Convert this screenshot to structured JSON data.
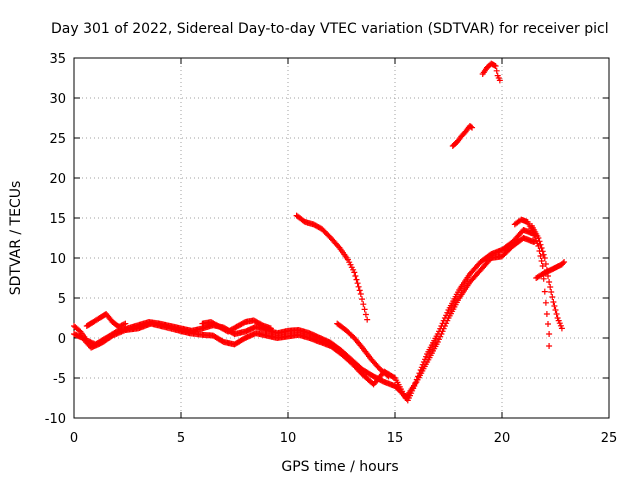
{
  "chart_data": {
    "type": "scatter",
    "title": "Day 301 of 2022, Sidereal Day-to-day VTEC variation (SDTVAR) for receiver picl",
    "xlabel": "GPS time / hours",
    "ylabel": "SDTVAR / TECUs",
    "xlim": [
      0,
      25
    ],
    "ylim": [
      -10,
      35
    ],
    "xticks": [
      0,
      5,
      10,
      15,
      20,
      25
    ],
    "yticks": [
      -10,
      -5,
      0,
      5,
      10,
      15,
      20,
      25,
      30,
      35
    ],
    "grid": true,
    "marker": "+",
    "color": "#ff0000",
    "series": [
      {
        "name": "trace-1",
        "points": [
          [
            0,
            1.5
          ],
          [
            0.3,
            0.8
          ],
          [
            0.6,
            -0.3
          ],
          [
            1,
            -0.8
          ],
          [
            1.5,
            0
          ],
          [
            2,
            0.8
          ],
          [
            2.5,
            1.2
          ],
          [
            3,
            1.6
          ],
          [
            3.5,
            2
          ],
          [
            4,
            1.8
          ],
          [
            4.5,
            1.5
          ],
          [
            5,
            1.2
          ],
          [
            5.5,
            0.9
          ],
          [
            6,
            1.2
          ],
          [
            6.5,
            1.6
          ],
          [
            7,
            1.3
          ],
          [
            7.5,
            0.5
          ],
          [
            8,
            0.8
          ],
          [
            8.5,
            1.4
          ],
          [
            9,
            1
          ],
          [
            9.5,
            0.6
          ],
          [
            10,
            0.9
          ],
          [
            10.5,
            1
          ],
          [
            11,
            0.6
          ],
          [
            11.5,
            0
          ],
          [
            12,
            -0.6
          ],
          [
            12.5,
            -1.6
          ],
          [
            13,
            -2.8
          ],
          [
            13.5,
            -4
          ],
          [
            14,
            -4.8
          ],
          [
            14.5,
            -5.5
          ],
          [
            15,
            -6
          ],
          [
            15.3,
            -6.8
          ],
          [
            15.6,
            -7.8
          ],
          [
            15.9,
            -6
          ],
          [
            16.2,
            -4
          ],
          [
            16.5,
            -2
          ],
          [
            17,
            0.5
          ],
          [
            17.5,
            3.5
          ],
          [
            18,
            6
          ],
          [
            18.5,
            8
          ],
          [
            19,
            9.5
          ],
          [
            19.5,
            10.5
          ],
          [
            20,
            11
          ],
          [
            20.5,
            12
          ],
          [
            21,
            13.5
          ],
          [
            21.5,
            13
          ]
        ]
      },
      {
        "name": "trace-2",
        "points": [
          [
            0,
            0.5
          ],
          [
            0.4,
            0
          ],
          [
            0.8,
            -1.2
          ],
          [
            1.3,
            -0.6
          ],
          [
            1.8,
            0.3
          ],
          [
            2.4,
            1
          ],
          [
            3,
            1.2
          ],
          [
            3.6,
            1.8
          ],
          [
            4.2,
            1.4
          ],
          [
            4.8,
            1
          ],
          [
            5.4,
            0.6
          ],
          [
            6,
            0.4
          ],
          [
            6.5,
            0.3
          ],
          [
            7,
            -0.5
          ],
          [
            7.5,
            -0.8
          ],
          [
            8,
            0
          ],
          [
            8.5,
            0.6
          ],
          [
            9,
            0.3
          ],
          [
            9.5,
            0
          ],
          [
            10,
            0.2
          ],
          [
            10.5,
            0.4
          ],
          [
            11,
            0
          ],
          [
            11.5,
            -0.5
          ],
          [
            12,
            -1
          ],
          [
            12.5,
            -2
          ],
          [
            13,
            -3.2
          ],
          [
            13.5,
            -4.6
          ],
          [
            14,
            -5.8
          ],
          [
            14.5,
            -4.2
          ],
          [
            15,
            -5
          ],
          [
            15.5,
            -7.5
          ],
          [
            16,
            -5.5
          ],
          [
            16.5,
            -3
          ],
          [
            17,
            -0.5
          ],
          [
            17.5,
            2.5
          ],
          [
            18,
            5
          ],
          [
            18.5,
            7
          ],
          [
            19,
            8.5
          ],
          [
            19.5,
            10
          ],
          [
            20,
            10.2
          ],
          [
            20.5,
            11.5
          ],
          [
            21,
            12.5
          ],
          [
            21.5,
            12
          ]
        ]
      },
      {
        "name": "trace-3",
        "points": [
          [
            0.6,
            1.5
          ],
          [
            0.9,
            2
          ],
          [
            1.2,
            2.5
          ],
          [
            1.5,
            3
          ],
          [
            1.8,
            2
          ],
          [
            2.1,
            1.4
          ],
          [
            2.4,
            1.8
          ]
        ]
      },
      {
        "name": "trace-4",
        "points": [
          [
            6,
            1.8
          ],
          [
            6.4,
            2
          ],
          [
            6.8,
            1.4
          ],
          [
            7.2,
            0.8
          ],
          [
            7.6,
            1.4
          ],
          [
            8,
            2
          ],
          [
            8.4,
            2.2
          ],
          [
            8.8,
            1.6
          ],
          [
            9.2,
            1.2
          ]
        ]
      },
      {
        "name": "trace-5",
        "points": [
          [
            10.4,
            15.3
          ],
          [
            10.8,
            14.5
          ],
          [
            11.2,
            14.2
          ],
          [
            11.6,
            13.6
          ],
          [
            12,
            12.5
          ],
          [
            12.4,
            11.3
          ],
          [
            12.8,
            9.8
          ],
          [
            13.1,
            8.2
          ],
          [
            13.4,
            5.5
          ],
          [
            13.7,
            2.3
          ]
        ]
      },
      {
        "name": "trace-6",
        "points": [
          [
            12.3,
            1.8
          ],
          [
            12.7,
            1
          ],
          [
            13.1,
            0
          ],
          [
            13.5,
            -1.3
          ],
          [
            13.9,
            -2.7
          ],
          [
            14.3,
            -3.9
          ],
          [
            14.7,
            -4.8
          ]
        ]
      },
      {
        "name": "trace-7",
        "points": [
          [
            17.7,
            24
          ],
          [
            17.9,
            24.5
          ],
          [
            18.1,
            25.2
          ],
          [
            18.3,
            25.8
          ],
          [
            18.5,
            26.5
          ],
          [
            18.6,
            26.3
          ]
        ]
      },
      {
        "name": "trace-8",
        "points": [
          [
            19.1,
            33
          ],
          [
            19.3,
            33.8
          ],
          [
            19.5,
            34.3
          ],
          [
            19.7,
            34
          ],
          [
            19.8,
            32.8
          ],
          [
            19.9,
            32.2
          ]
        ]
      },
      {
        "name": "trace-9",
        "points": [
          [
            20.6,
            14.2
          ],
          [
            20.9,
            14.8
          ],
          [
            21.2,
            14.5
          ],
          [
            21.4,
            13.5
          ],
          [
            21.7,
            11.5
          ],
          [
            21.9,
            9
          ],
          [
            22,
            5.8
          ],
          [
            22.1,
            3
          ],
          [
            22.2,
            0.5
          ],
          [
            22.2,
            -1
          ]
        ]
      },
      {
        "name": "trace-10",
        "points": [
          [
            21.4,
            14
          ],
          [
            21.7,
            12.5
          ],
          [
            22,
            10
          ],
          [
            22.2,
            7
          ],
          [
            22.4,
            4.5
          ],
          [
            22.6,
            2.5
          ],
          [
            22.8,
            1.2
          ]
        ]
      },
      {
        "name": "trace-11",
        "points": [
          [
            21.6,
            7.5
          ],
          [
            21.9,
            8
          ],
          [
            22.2,
            8.4
          ],
          [
            22.5,
            8.8
          ],
          [
            22.8,
            9.2
          ],
          [
            22.9,
            9.5
          ]
        ]
      }
    ]
  }
}
